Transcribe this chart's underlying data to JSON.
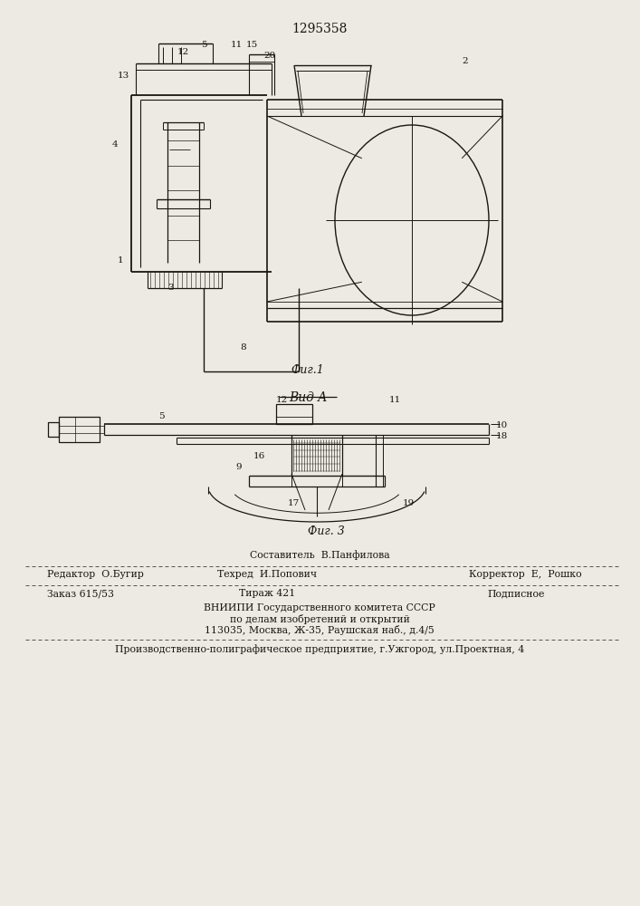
{
  "patent_number": "1295358",
  "bg_color": "#ede9e3",
  "line_color": "#1a1510",
  "fig1_caption": "Фиг.1",
  "fig3_caption": "Фиг. 3",
  "vid_a_label": "Вид A",
  "compiler_label": "Составитель  В.Панфилова",
  "footer": {
    "line1_left": "Редактор  О.Бугир",
    "line1_mid": "Техред  И.Попович",
    "line1_right": "Корректор  Е,  Рошко",
    "line2_left": "Заказ 615/53",
    "line2_mid": "Тираж 421",
    "line2_right": "Подписное",
    "line3": "ВНИИПИ Государственного комитета СССР",
    "line4": "по делам изобретений и открытий",
    "line5": "113035, Москва, Ж-35, Раушская наб., д.4/5",
    "line6": "Производственно-полиграфическое предприятие, г.Ужгород, ул.Проектная, 4"
  }
}
